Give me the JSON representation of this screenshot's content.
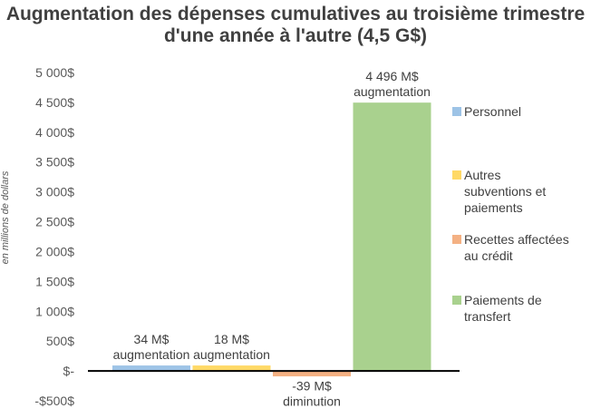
{
  "title": "Augmentation des dépenses cumulatives au troisième trimestre d'une année à l'autre (4,5 G$)",
  "chart_data": {
    "type": "bar",
    "title": "Augmentation des dépenses cumulatives au troisième trimestre d'une année à l'autre (4,5 G$)",
    "ylabel": "en millions de dollars",
    "ylim": [
      -500,
      5000
    ],
    "yticks": [
      5000,
      4500,
      4000,
      3500,
      3000,
      2500,
      2000,
      1500,
      1000,
      500,
      0,
      -500
    ],
    "ytick_labels": [
      "5 000$",
      "4 500$",
      "4 000$",
      "3 500$",
      "3 000$",
      "2 500$",
      "2 000$",
      "1 500$",
      "1 000$",
      "500$",
      "$-",
      "-$500$"
    ],
    "grid": false,
    "legend_position": "right",
    "categories": [
      "Personnel",
      "Autres subventions et paiements",
      "Recettes affectées au crédit",
      "Paiements de transfert"
    ],
    "values": [
      34,
      18,
      -39,
      4496
    ],
    "colors": [
      "#9dc3e6",
      "#ffd966",
      "#f4b183",
      "#a9d18e"
    ],
    "data_labels": [
      [
        "34 M$",
        "augmentation"
      ],
      [
        "18 M$",
        "augmentation"
      ],
      [
        "-39 M$",
        "diminution"
      ],
      [
        "4 496 M$",
        "augmentation"
      ]
    ],
    "legend": [
      [
        "Personnel"
      ],
      [
        "Autres",
        "subventions et",
        "paiements"
      ],
      [
        "Recettes affectées",
        "au crédit"
      ],
      [
        "Paiements de",
        "transfert"
      ]
    ]
  }
}
